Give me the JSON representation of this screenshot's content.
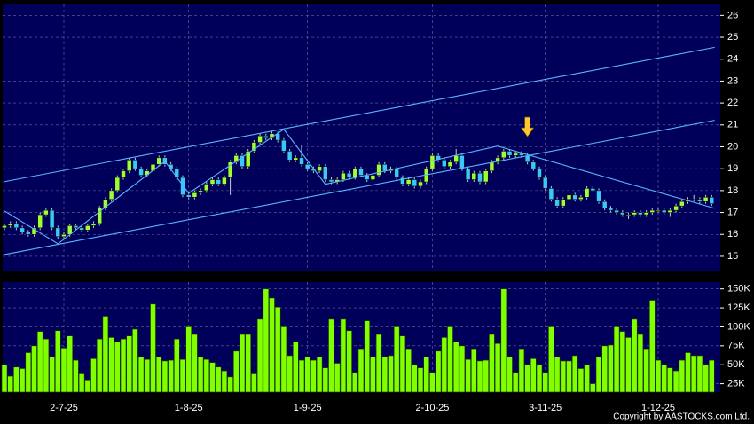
{
  "chart_data": {
    "type": "candlestick",
    "categories": [
      null,
      null,
      null,
      null,
      null,
      null,
      null,
      null,
      null,
      null,
      "2-7-25",
      null,
      null,
      null,
      null,
      null,
      null,
      null,
      null,
      null,
      null,
      null,
      null,
      null,
      null,
      null,
      null,
      null,
      null,
      null,
      null,
      "1-8-25",
      null,
      null,
      null,
      null,
      null,
      null,
      null,
      null,
      null,
      null,
      null,
      null,
      null,
      null,
      null,
      null,
      null,
      null,
      null,
      "1-9-25",
      null,
      null,
      null,
      null,
      null,
      null,
      null,
      null,
      null,
      null,
      null,
      null,
      null,
      null,
      null,
      null,
      null,
      null,
      null,
      null,
      "2-10-25",
      null,
      null,
      null,
      null,
      null,
      null,
      null,
      null,
      null,
      null,
      null,
      null,
      null,
      null,
      null,
      null,
      null,
      null,
      "3-11-25",
      null,
      null,
      null,
      null,
      null,
      null,
      null,
      null,
      null,
      null,
      null,
      null,
      null,
      null,
      null,
      null,
      null,
      null,
      "1-12-25",
      null,
      null,
      null,
      null,
      null,
      null,
      null,
      null,
      null
    ],
    "open": [
      16.3,
      16.4,
      16.5,
      16.3,
      16.1,
      16.0,
      16.3,
      16.9,
      17.1,
      16.3,
      15.9,
      16.0,
      16.4,
      16.3,
      16.2,
      16.4,
      16.5,
      17.2,
      17.6,
      18.0,
      18.6,
      18.9,
      19.4,
      19.0,
      18.7,
      18.9,
      19.2,
      19.5,
      19.2,
      19.0,
      18.6,
      17.8,
      17.7,
      17.9,
      18.0,
      18.3,
      18.5,
      18.3,
      18.6,
      19.3,
      19.6,
      19.1,
      19.8,
      20.2,
      20.5,
      20.4,
      20.6,
      20.3,
      19.8,
      19.4,
      19.5,
      19.2,
      19.0,
      18.9,
      19.1,
      18.5,
      18.4,
      18.5,
      18.8,
      18.6,
      19.0,
      18.7,
      18.5,
      18.7,
      19.2,
      18.9,
      19.0,
      18.6,
      18.3,
      18.5,
      18.2,
      18.4,
      19.0,
      19.6,
      19.4,
      19.1,
      19.3,
      19.6,
      19.0,
      18.5,
      18.8,
      18.4,
      18.9,
      19.3,
      19.5,
      19.8,
      19.6,
      19.7,
      19.6,
      19.3,
      19.0,
      18.6,
      18.1,
      17.6,
      17.3,
      17.6,
      17.8,
      17.6,
      17.7,
      18.1,
      18.0,
      17.5,
      17.2,
      17.1,
      17.0,
      16.9,
      16.9,
      17.0,
      16.9,
      17.0,
      17.1,
      17.1,
      17.0,
      17.1,
      17.3,
      17.5,
      17.6,
      17.6,
      17.5,
      17.7
    ],
    "high": [
      16.5,
      16.6,
      16.6,
      16.4,
      16.2,
      16.4,
      17.0,
      17.2,
      17.2,
      16.4,
      16.1,
      16.5,
      16.5,
      16.4,
      16.5,
      16.6,
      17.3,
      17.7,
      18.1,
      18.7,
      19.0,
      19.5,
      19.5,
      19.1,
      19.0,
      19.3,
      19.6,
      19.6,
      19.3,
      19.1,
      18.7,
      17.9,
      18.0,
      18.1,
      18.4,
      18.6,
      18.6,
      18.7,
      19.4,
      19.7,
      19.7,
      19.9,
      20.3,
      20.6,
      20.6,
      20.7,
      20.7,
      20.4,
      19.9,
      19.6,
      20.1,
      19.3,
      19.1,
      19.2,
      19.2,
      18.6,
      18.6,
      18.9,
      18.9,
      19.1,
      19.1,
      18.8,
      18.8,
      19.3,
      19.3,
      19.1,
      19.1,
      18.7,
      18.6,
      18.6,
      18.5,
      19.1,
      19.7,
      19.7,
      19.5,
      19.4,
      19.9,
      19.7,
      19.1,
      18.9,
      18.9,
      19.0,
      19.4,
      19.6,
      19.9,
      19.9,
      19.8,
      19.8,
      19.7,
      19.4,
      19.1,
      18.7,
      18.2,
      17.7,
      17.7,
      17.9,
      17.9,
      17.8,
      18.2,
      18.2,
      18.1,
      17.6,
      17.3,
      17.2,
      17.1,
      17.0,
      17.1,
      17.1,
      17.1,
      17.2,
      17.2,
      17.2,
      17.2,
      17.4,
      17.6,
      17.7,
      17.8,
      17.7,
      17.8,
      17.8
    ],
    "low": [
      16.2,
      16.3,
      16.2,
      16.0,
      15.9,
      15.9,
      16.2,
      16.8,
      16.2,
      15.8,
      15.8,
      15.9,
      16.2,
      16.1,
      16.1,
      16.3,
      16.4,
      17.1,
      17.5,
      17.9,
      18.5,
      18.8,
      18.9,
      18.6,
      18.6,
      18.8,
      19.1,
      19.1,
      18.9,
      18.5,
      17.7,
      17.6,
      17.6,
      17.8,
      17.9,
      18.2,
      18.2,
      18.2,
      17.8,
      19.2,
      19.0,
      19.0,
      19.7,
      20.1,
      20.3,
      20.3,
      20.2,
      19.7,
      19.3,
      19.3,
      19.1,
      18.9,
      18.8,
      18.8,
      18.4,
      18.3,
      18.3,
      18.4,
      18.5,
      18.5,
      18.6,
      18.4,
      18.4,
      18.6,
      18.8,
      18.8,
      18.5,
      18.2,
      18.2,
      18.1,
      18.1,
      18.3,
      18.9,
      19.3,
      19.0,
      19.0,
      19.2,
      18.9,
      18.4,
      18.4,
      18.3,
      18.3,
      18.8,
      19.2,
      19.4,
      19.5,
      19.5,
      19.5,
      19.2,
      18.9,
      18.5,
      18.0,
      17.5,
      17.2,
      17.2,
      17.5,
      17.5,
      17.5,
      17.6,
      17.9,
      17.4,
      17.1,
      17.0,
      16.9,
      16.8,
      16.7,
      16.8,
      16.8,
      16.8,
      16.9,
      17.0,
      16.9,
      16.8,
      17.0,
      17.2,
      17.4,
      17.5,
      17.4,
      17.4,
      17.3
    ],
    "close": [
      16.4,
      16.5,
      16.3,
      16.1,
      16.0,
      16.3,
      16.9,
      17.1,
      16.3,
      15.9,
      16.0,
      16.4,
      16.3,
      16.2,
      16.4,
      16.5,
      17.2,
      17.6,
      18.0,
      18.6,
      18.9,
      19.4,
      19.0,
      18.7,
      18.9,
      19.2,
      19.5,
      19.2,
      19.0,
      18.6,
      17.8,
      17.7,
      17.9,
      18.0,
      18.3,
      18.5,
      18.3,
      18.6,
      19.3,
      19.6,
      19.1,
      19.8,
      20.2,
      20.5,
      20.4,
      20.6,
      20.3,
      19.8,
      19.4,
      19.5,
      19.2,
      19.0,
      18.9,
      19.1,
      18.5,
      18.4,
      18.5,
      18.8,
      18.6,
      19.0,
      18.7,
      18.5,
      18.7,
      19.2,
      18.9,
      19.0,
      18.6,
      18.3,
      18.5,
      18.2,
      18.4,
      19.0,
      19.6,
      19.4,
      19.1,
      19.3,
      19.6,
      19.0,
      18.5,
      18.8,
      18.4,
      18.9,
      19.3,
      19.5,
      19.8,
      19.6,
      19.7,
      19.6,
      19.3,
      19.0,
      18.6,
      18.1,
      17.6,
      17.3,
      17.6,
      17.8,
      17.6,
      17.7,
      18.1,
      18.0,
      17.5,
      17.2,
      17.1,
      17.0,
      16.9,
      16.9,
      17.0,
      16.9,
      17.0,
      17.1,
      17.1,
      17.0,
      17.1,
      17.3,
      17.5,
      17.6,
      17.6,
      17.5,
      17.7,
      17.4
    ],
    "up_color": "#9cff3a",
    "down_color": "#38c8ff",
    "ylim": [
      14.35,
      26.5
    ],
    "yticks": [
      15,
      16,
      17,
      18,
      19,
      20,
      21,
      22,
      23,
      24,
      25,
      26
    ],
    "grid": true,
    "trendlines": [
      {
        "x": [
          0,
          119.5
        ],
        "y": [
          18.41,
          24.54
        ]
      },
      {
        "x": [
          0,
          119.5
        ],
        "y": [
          15.08,
          21.21
        ]
      },
      {
        "x": [
          0,
          9,
          27,
          31,
          47,
          54,
          83,
          119.5
        ],
        "y": [
          17.07,
          15.57,
          19.34,
          17.88,
          20.8,
          18.29,
          20.03,
          17.19
        ]
      }
    ],
    "trendline_color": "#5ab4ff",
    "marker": {
      "index": 88,
      "value": 20.3,
      "color": "#ffc830"
    },
    "volume": {
      "values": [
        50000,
        35000,
        47000,
        45000,
        66000,
        75000,
        94000,
        84000,
        60000,
        95000,
        72000,
        88000,
        56000,
        38000,
        30000,
        58000,
        84000,
        114000,
        86000,
        80000,
        84000,
        88000,
        97000,
        60000,
        57000,
        130000,
        60000,
        55000,
        56000,
        84000,
        57000,
        100000,
        90000,
        60000,
        57000,
        53000,
        47000,
        42000,
        34000,
        68000,
        90000,
        90000,
        38000,
        110000,
        150000,
        138000,
        126000,
        100000,
        62000,
        80000,
        56000,
        60000,
        56000,
        60000,
        46000,
        110000,
        52000,
        110000,
        95000,
        40000,
        70000,
        108000,
        60000,
        90000,
        60000,
        62000,
        100000,
        88000,
        70000,
        50000,
        46000,
        60000,
        40000,
        68000,
        86000,
        100000,
        80000,
        75000,
        57000,
        70000,
        55000,
        56000,
        90000,
        78000,
        150000,
        60000,
        40000,
        70000,
        50000,
        58000,
        50000,
        40000,
        100000,
        60000,
        55000,
        55000,
        62000,
        45000,
        50000,
        25000,
        60000,
        75000,
        76000,
        100000,
        94000,
        86000,
        110000,
        90000,
        70000,
        135000,
        56000,
        50000,
        46000,
        42000,
        56000,
        66000,
        62000,
        62000,
        50000,
        56000
      ],
      "color": "#80ff00",
      "ylim": [
        14000,
        159000
      ],
      "yticks": [
        {
          "value": 25000,
          "label": "25K"
        },
        {
          "value": 50000,
          "label": "50K"
        },
        {
          "value": 75000,
          "label": "75K"
        },
        {
          "value": 100000,
          "label": "100K"
        },
        {
          "value": 125000,
          "label": "125K"
        },
        {
          "value": 150000,
          "label": "150K"
        }
      ]
    },
    "copyright": "Copyright by AASTOCKS.com Ltd."
  }
}
